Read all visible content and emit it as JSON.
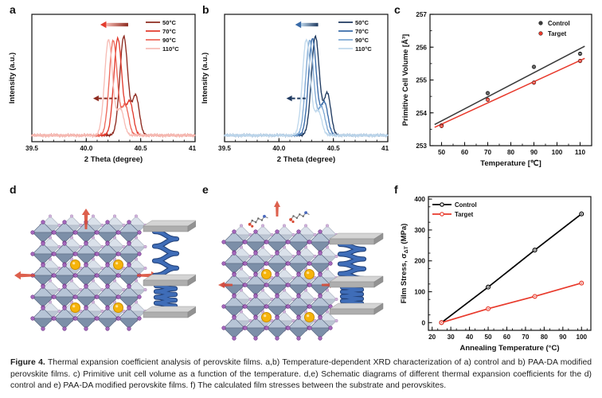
{
  "figure": {
    "caption_label": "Figure 4.",
    "caption_text": "Thermal expansion coefficient analysis of perovskite films. a,b) Temperature-dependent XRD characterization of a) control and b) PAA-DA modified perovskite films. c) Primitive unit cell volume as a function of the temperature. d,e) Schematic diagrams of different thermal expansion coefficients for the d) control and e) PAA-DA modified perovskite films. f) The calculated film stresses between the substrate and perovskites."
  },
  "panels": {
    "a": {
      "label": "a"
    },
    "b": {
      "label": "b"
    },
    "c": {
      "label": "c"
    },
    "d": {
      "label": "d"
    },
    "e": {
      "label": "e"
    },
    "f": {
      "label": "f"
    }
  },
  "chart_data": [
    {
      "panel": "a",
      "type": "line",
      "subtype": "xrd-peaks",
      "xlabel": "2 Theta (degree)",
      "ylabel": "Intensity (a.u.)",
      "xlim": [
        39.5,
        41.0
      ],
      "xticks": [
        39.5,
        40.0,
        40.5,
        41.0
      ],
      "xtick_labels": [
        "39.5",
        "40.0",
        "40.5",
        "41.0"
      ],
      "xminor": 0.1,
      "legend_position": "top-right",
      "series": [
        {
          "name": "50°C",
          "color": "#8e2b20",
          "peaks": [
            {
              "center": 40.345,
              "height": 1.0,
              "width": 0.052
            },
            {
              "center": 40.455,
              "height": 0.4,
              "width": 0.045
            }
          ]
        },
        {
          "name": "70°C",
          "color": "#e23c2e",
          "peaks": [
            {
              "center": 40.29,
              "height": 0.98,
              "width": 0.052
            },
            {
              "center": 40.4,
              "height": 0.34,
              "width": 0.045
            }
          ]
        },
        {
          "name": "90°C",
          "color": "#ee6a5c",
          "peaks": [
            {
              "center": 40.248,
              "height": 0.96,
              "width": 0.052
            },
            {
              "center": 40.358,
              "height": 0.3,
              "width": 0.045
            }
          ]
        },
        {
          "name": "110°C",
          "color": "#f7bdb6",
          "peaks": [
            {
              "center": 40.205,
              "height": 0.97,
              "width": 0.052
            },
            {
              "center": 40.315,
              "height": 0.26,
              "width": 0.045
            }
          ]
        }
      ],
      "annotations": [
        {
          "name": "peak-shift-arrow-solid",
          "direction": "left"
        },
        {
          "name": "peak-shift-arrow-dashed",
          "direction": "left"
        }
      ]
    },
    {
      "panel": "b",
      "type": "line",
      "subtype": "xrd-peaks",
      "xlabel": "2 Theta (degree)",
      "ylabel": "Intensity (a.u.)",
      "xlim": [
        39.5,
        41.0
      ],
      "xticks": [
        39.5,
        40.0,
        40.5,
        41.0
      ],
      "xtick_labels": [
        "39.5",
        "40.0",
        "40.5",
        "41.0"
      ],
      "xminor": 0.1,
      "legend_position": "top-right",
      "series": [
        {
          "name": "50°C",
          "color": "#1f3a60",
          "peaks": [
            {
              "center": 40.335,
              "height": 1.0,
              "width": 0.052
            },
            {
              "center": 40.445,
              "height": 0.42,
              "width": 0.045
            }
          ]
        },
        {
          "name": "70°C",
          "color": "#3a6ba8",
          "peaks": [
            {
              "center": 40.308,
              "height": 0.98,
              "width": 0.052
            },
            {
              "center": 40.418,
              "height": 0.33,
              "width": 0.045
            }
          ]
        },
        {
          "name": "90°C",
          "color": "#7fa9d4",
          "peaks": [
            {
              "center": 40.282,
              "height": 0.96,
              "width": 0.052
            },
            {
              "center": 40.392,
              "height": 0.28,
              "width": 0.045
            }
          ]
        },
        {
          "name": "110°C",
          "color": "#bfd8ec",
          "peaks": [
            {
              "center": 40.252,
              "height": 0.97,
              "width": 0.052
            },
            {
              "center": 40.362,
              "height": 0.24,
              "width": 0.045
            }
          ]
        }
      ],
      "annotations": [
        {
          "name": "peak-shift-arrow-solid",
          "direction": "left"
        },
        {
          "name": "peak-shift-arrow-dashed",
          "direction": "left"
        }
      ]
    },
    {
      "panel": "c",
      "type": "scatter",
      "xlabel": "Temperature [℃]",
      "ylabel": "Primitive Cell Volume [Å³]",
      "xlim": [
        45,
        115
      ],
      "ylim": [
        253,
        257
      ],
      "xticks": [
        50,
        60,
        70,
        80,
        90,
        100,
        110
      ],
      "yticks": [
        253,
        254,
        255,
        256,
        257
      ],
      "xminor": 5,
      "yminor": 0.5,
      "legend_position": "top-right",
      "series": [
        {
          "name": "Control",
          "color": "#3a3a3a",
          "x": [
            50,
            70,
            90,
            110
          ],
          "y": [
            253.62,
            254.6,
            255.4,
            255.8
          ],
          "fit_line": true
        },
        {
          "name": "Target",
          "color": "#e8392b",
          "x": [
            50,
            70,
            90,
            110
          ],
          "y": [
            253.6,
            254.4,
            254.92,
            255.58
          ],
          "fit_line": true
        }
      ]
    },
    {
      "panel": "f",
      "type": "line",
      "xlabel": "Annealing Temperature (°C)",
      "ylabel": "Film Stress, σΔT (MPa)",
      "ylabel_parts": {
        "prefix": "Film Stress, σ",
        "sub": "ΔT",
        "suffix": " (MPa)"
      },
      "xlim": [
        18,
        105
      ],
      "ylim": [
        -25,
        408
      ],
      "xticks": [
        20,
        30,
        40,
        50,
        60,
        70,
        80,
        90,
        100
      ],
      "yticks": [
        0,
        100,
        200,
        300,
        400
      ],
      "xminor": 5,
      "yminor": 50,
      "legend_position": "top-left",
      "series": [
        {
          "name": "Control",
          "color": "#000000",
          "x": [
            25,
            50,
            75,
            100
          ],
          "y": [
            0,
            115,
            235,
            352
          ]
        },
        {
          "name": "Target",
          "color": "#e8392b",
          "x": [
            25,
            50,
            75,
            100
          ],
          "y": [
            0,
            45,
            85,
            128
          ]
        }
      ]
    }
  ],
  "schematics": {
    "d": {
      "label": "d",
      "molecules": false,
      "description": "control perovskite lattice, large thermal expansion arrows, stretched spring between plates"
    },
    "e": {
      "label": "e",
      "molecules": true,
      "description": "PAA-DA modified perovskite lattice, small thermal expansion arrows, compressed spring between plates"
    }
  },
  "colors": {
    "control": "#000000",
    "target": "#e8392b",
    "octahedron_light": "#b6c4d6",
    "octahedron_dark": "#7c8fa8",
    "halide": "#a569bd",
    "cation": "#f6b40a",
    "spring": "#3f6db8",
    "plate": "#c9c9c9",
    "expansion_arrow": "#d84a34"
  }
}
